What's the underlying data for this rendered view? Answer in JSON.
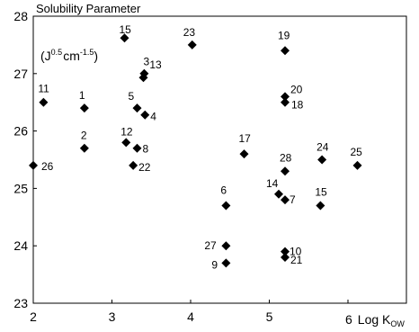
{
  "chart_data": {
    "type": "scatter",
    "title": "Solubility Parameter",
    "ylabel_unit": {
      "open": "(J",
      "exp1": "0.5",
      "mid": "cm",
      "exp2": "-1.5",
      "close": ")"
    },
    "xlabel": {
      "tick": "6",
      "main": "Log K",
      "sub": "OW"
    },
    "xlim": [
      2,
      6.5
    ],
    "ylim": [
      23,
      28
    ],
    "x_ticks": [
      "2",
      "3",
      "4",
      "5"
    ],
    "y_ticks": [
      "23",
      "24",
      "25",
      "26",
      "27",
      "28"
    ],
    "grid": false,
    "marker": "diamond",
    "marker_color": "#000000",
    "points": [
      {
        "label": "1",
        "x": 2.65,
        "y": 26.4
      },
      {
        "label": "2",
        "x": 2.65,
        "y": 25.7
      },
      {
        "label": "3",
        "x": 3.4,
        "y": 26.93
      },
      {
        "label": "4",
        "x": 3.42,
        "y": 26.28
      },
      {
        "label": "5",
        "x": 3.32,
        "y": 26.4
      },
      {
        "label": "6",
        "x": 4.45,
        "y": 24.7
      },
      {
        "label": "7",
        "x": 5.2,
        "y": 24.8
      },
      {
        "label": "8",
        "x": 3.32,
        "y": 25.7
      },
      {
        "label": "9",
        "x": 4.45,
        "y": 23.7
      },
      {
        "label": "10",
        "x": 5.2,
        "y": 23.9
      },
      {
        "label": "11",
        "x": 2.13,
        "y": 26.5
      },
      {
        "label": "12",
        "x": 3.18,
        "y": 25.8
      },
      {
        "label": "13",
        "x": 3.41,
        "y": 27.0
      },
      {
        "label": "14",
        "x": 5.12,
        "y": 24.9
      },
      {
        "label": "15",
        "x": 3.16,
        "y": 27.62
      },
      {
        "label": "15",
        "x": 5.65,
        "y": 24.7
      },
      {
        "label": "17",
        "x": 4.68,
        "y": 25.6
      },
      {
        "label": "18",
        "x": 5.2,
        "y": 26.5
      },
      {
        "label": "19",
        "x": 5.2,
        "y": 27.4
      },
      {
        "label": "20",
        "x": 5.2,
        "y": 26.6
      },
      {
        "label": "21",
        "x": 5.2,
        "y": 23.8
      },
      {
        "label": "22",
        "x": 3.27,
        "y": 25.4
      },
      {
        "label": "23",
        "x": 4.02,
        "y": 27.5
      },
      {
        "label": "24",
        "x": 5.67,
        "y": 25.5
      },
      {
        "label": "25",
        "x": 6.12,
        "y": 25.4
      },
      {
        "label": "26",
        "x": 2.0,
        "y": 25.4
      },
      {
        "label": "27",
        "x": 4.45,
        "y": 24.0
      },
      {
        "label": "28",
        "x": 5.2,
        "y": 25.3
      }
    ]
  }
}
